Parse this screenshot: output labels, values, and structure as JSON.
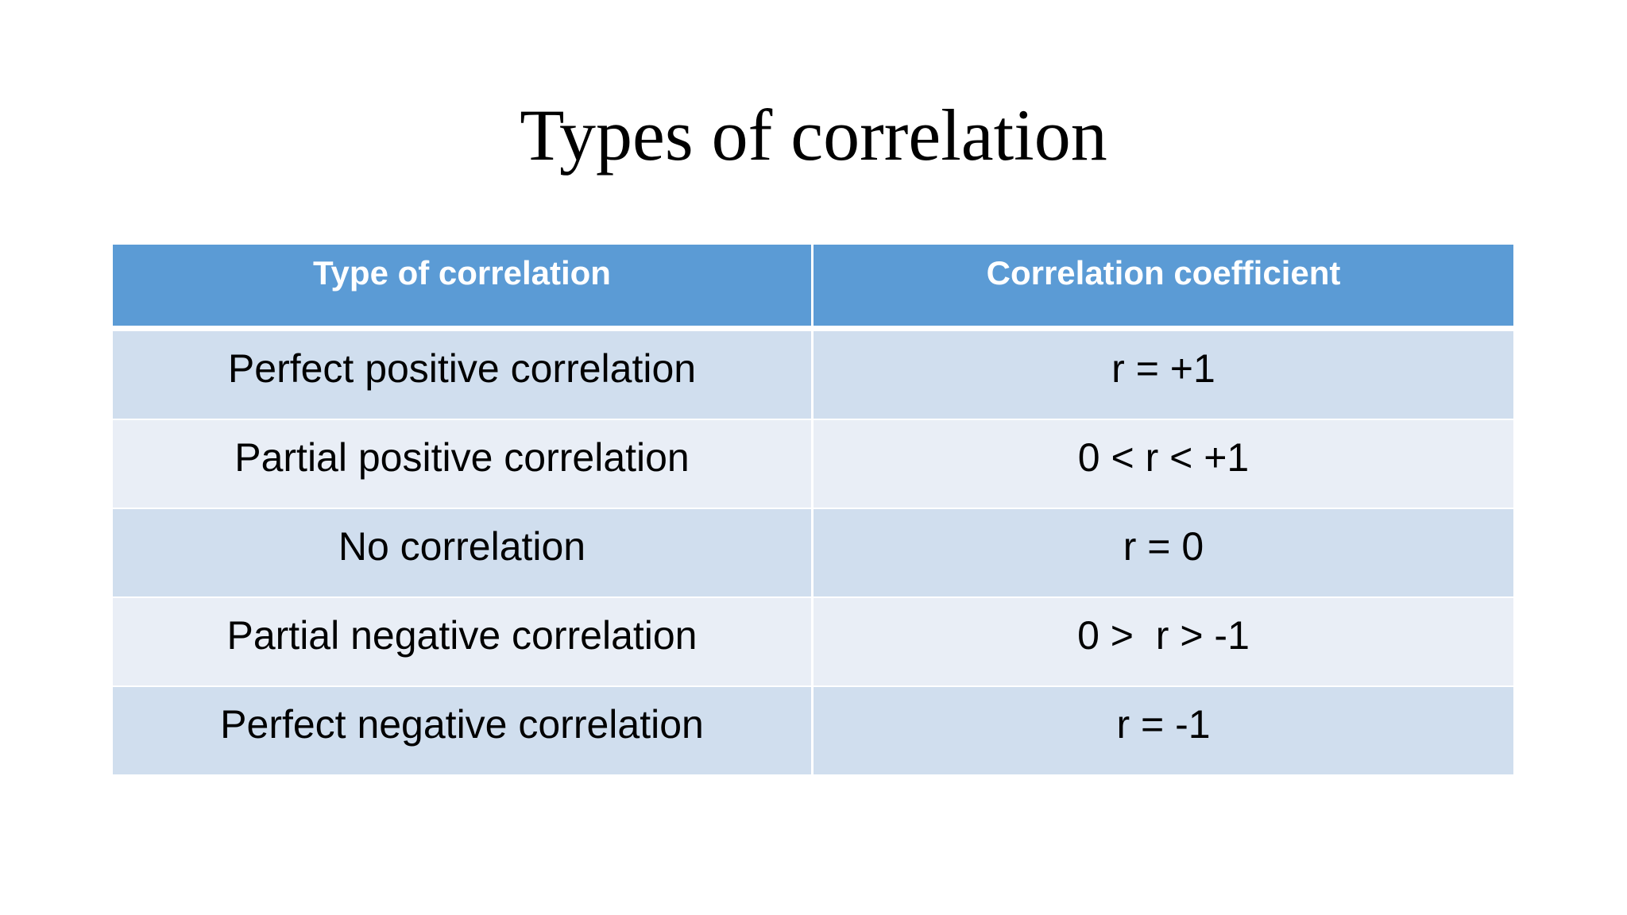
{
  "slide": {
    "title": "Types of correlation"
  },
  "table": {
    "headers": [
      "Type of correlation",
      "Correlation coefficient"
    ],
    "rows": [
      {
        "type": "Perfect positive correlation",
        "coefficient": "r = +1"
      },
      {
        "type": "Partial positive correlation",
        "coefficient": "0 < r < +1"
      },
      {
        "type": "No correlation",
        "coefficient": "r = 0"
      },
      {
        "type": "Partial negative correlation",
        "coefficient": "0 >  r > -1"
      },
      {
        "type": "Perfect negative correlation",
        "coefficient": "r = -1"
      }
    ]
  },
  "colors": {
    "header_bg": "#5b9bd5",
    "row_odd_bg": "#d0deee",
    "row_even_bg": "#e9eef6"
  }
}
